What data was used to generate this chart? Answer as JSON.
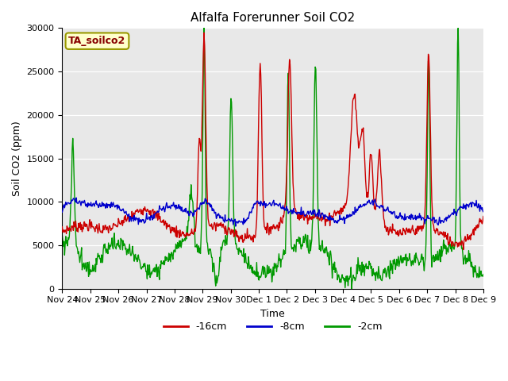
{
  "title": "Alfalfa Forerunner Soil CO2",
  "ylabel": "Soil CO2 (ppm)",
  "xlabel": "Time",
  "annotation": "TA_soilco2",
  "ylim": [
    0,
    30000
  ],
  "yticks": [
    0,
    5000,
    10000,
    15000,
    20000,
    25000,
    30000
  ],
  "xtick_labels": [
    "Nov 24",
    "Nov 25",
    "Nov 26",
    "Nov 27",
    "Nov 28",
    "Nov 29",
    "Nov 30",
    "Dec 1",
    "Dec 2",
    "Dec 3",
    "Dec 4",
    "Dec 5",
    "Dec 6",
    "Dec 7",
    "Dec 8",
    "Dec 9"
  ],
  "colors": {
    "16cm": "#cc0000",
    "8cm": "#0000cc",
    "2cm": "#009900",
    "background": "#e8e8e8",
    "annotation_bg": "#ffffcc",
    "annotation_border": "#999900"
  },
  "legend_labels": [
    "-16cm",
    "-8cm",
    "-2cm"
  ],
  "line_width": 1.0,
  "num_points": 720
}
